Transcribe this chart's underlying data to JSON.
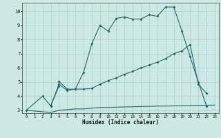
{
  "xlabel": "Humidex (Indice chaleur)",
  "bg_color": "#cce8e4",
  "line_color": "#1a6b6b",
  "grid_color": "#aacfcc",
  "xlim": [
    -0.5,
    23.5
  ],
  "ylim": [
    2.8,
    10.6
  ],
  "yticks": [
    3,
    4,
    5,
    6,
    7,
    8,
    9,
    10
  ],
  "xticks": [
    0,
    1,
    2,
    3,
    4,
    5,
    6,
    7,
    8,
    9,
    10,
    11,
    12,
    13,
    14,
    15,
    16,
    17,
    18,
    19,
    20,
    21,
    22,
    23
  ],
  "line1_x": [
    0,
    2,
    3,
    4,
    5,
    6,
    7,
    8,
    9,
    10,
    11,
    12,
    13,
    14,
    15,
    16,
    17,
    18,
    19,
    20,
    21,
    22
  ],
  "line1_y": [
    3.0,
    4.0,
    3.3,
    4.85,
    4.4,
    4.5,
    5.7,
    7.7,
    9.0,
    8.6,
    9.5,
    9.6,
    9.45,
    9.45,
    9.75,
    9.65,
    10.3,
    10.3,
    8.6,
    6.8,
    5.0,
    3.3
  ],
  "line2_x": [
    3,
    4,
    4,
    5,
    6,
    7,
    8,
    9,
    10,
    11,
    12,
    13,
    14,
    15,
    16,
    17,
    18,
    19,
    20,
    21,
    22
  ],
  "line2_y": [
    3.35,
    4.7,
    5.05,
    4.5,
    4.5,
    4.5,
    4.55,
    4.85,
    5.1,
    5.3,
    5.55,
    5.75,
    6.0,
    6.2,
    6.4,
    6.65,
    7.0,
    7.2,
    7.65,
    4.85,
    4.2
  ],
  "line3_x": [
    0,
    3,
    4,
    5,
    6,
    7,
    8,
    9,
    10,
    11,
    12,
    13,
    14,
    15,
    16,
    17,
    18,
    19,
    20,
    21,
    22,
    23
  ],
  "line3_y": [
    3.0,
    2.85,
    3.0,
    3.05,
    3.1,
    3.1,
    3.15,
    3.2,
    3.2,
    3.22,
    3.24,
    3.25,
    3.27,
    3.28,
    3.3,
    3.3,
    3.32,
    3.33,
    3.34,
    3.35,
    3.36,
    3.37
  ]
}
